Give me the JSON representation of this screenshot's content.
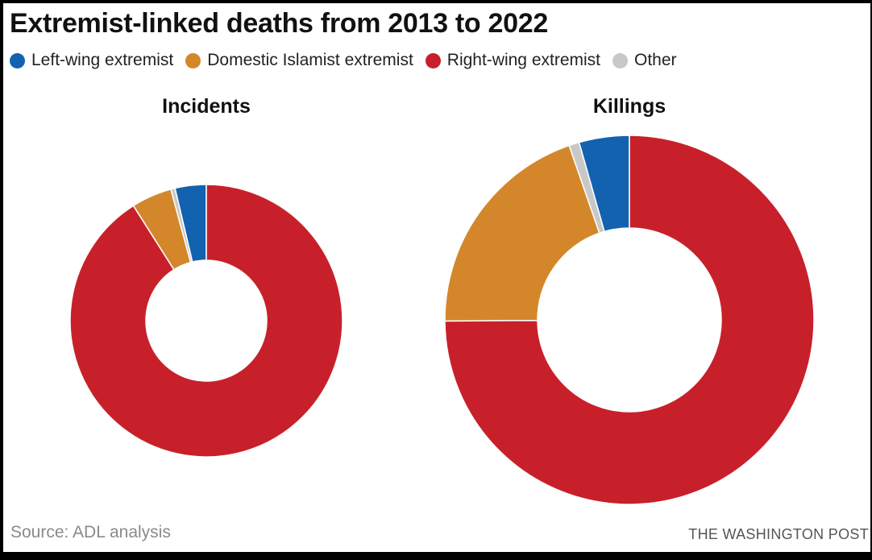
{
  "title": "Extremist-linked deaths from 2013 to 2022",
  "legend": [
    {
      "label": "Left-wing extremist",
      "color": "#1362b0"
    },
    {
      "label": "Domestic Islamist extremist",
      "color": "#d4872a"
    },
    {
      "label": "Right-wing extremist",
      "color": "#c8202a"
    },
    {
      "label": "Other",
      "color": "#c8c8c8"
    }
  ],
  "source": "Source: ADL analysis",
  "credit": "THE WASHINGTON POST",
  "chart_data": [
    {
      "type": "pie",
      "title": "Incidents",
      "donut": true,
      "unit": "percent (estimated)",
      "categories": [
        "Left-wing extremist",
        "Other",
        "Domestic Islamist extremist",
        "Right-wing extremist"
      ],
      "values": [
        3.7,
        0.5,
        4.8,
        91.0
      ],
      "colors": [
        "#1362b0",
        "#c8c8c8",
        "#d4872a",
        "#c8202a"
      ],
      "start_angle": 0,
      "direction": "counterclockwise"
    },
    {
      "type": "pie",
      "title": "Killings",
      "donut": true,
      "unit": "percent (estimated)",
      "categories": [
        "Left-wing extremist",
        "Other",
        "Domestic Islamist extremist",
        "Right-wing extremist"
      ],
      "values": [
        4.4,
        0.9,
        19.8,
        74.9
      ],
      "colors": [
        "#1362b0",
        "#c8c8c8",
        "#d4872a",
        "#c8202a"
      ],
      "start_angle": 0,
      "direction": "counterclockwise"
    }
  ]
}
